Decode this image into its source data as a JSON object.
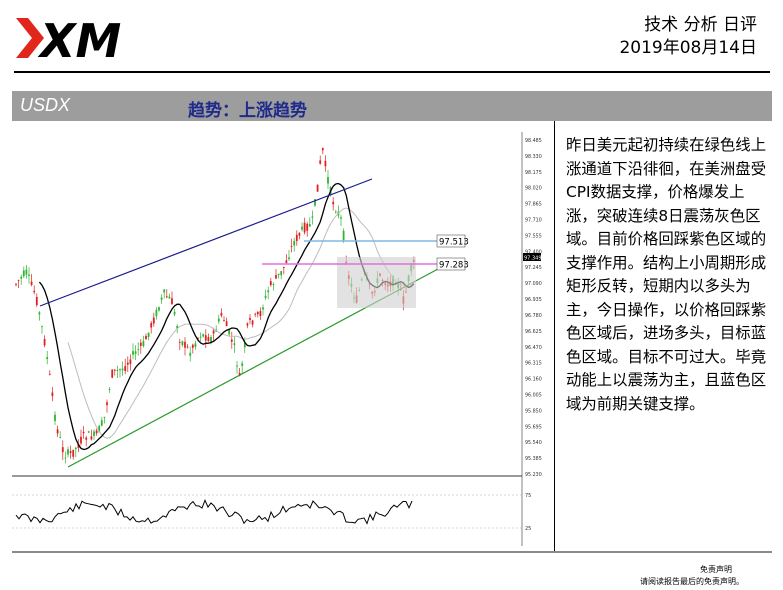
{
  "header": {
    "logo_text": "XM",
    "title": "技术 分析 日评",
    "date": "2019年08月14日"
  },
  "banner": {
    "symbol": "USDX",
    "trend": "趋势：上涨趋势"
  },
  "chart": {
    "level_blue": "97.513",
    "level_purple": "97.283",
    "price_axis": [
      "98.485",
      "98.330",
      "98.175",
      "98.020",
      "97.865",
      "97.710",
      "97.555",
      "97.400",
      "97.245",
      "97.090",
      "96.935",
      "96.780",
      "96.625",
      "96.470",
      "96.315",
      "96.160",
      "96.005",
      "95.850",
      "95.695",
      "95.540",
      "95.385",
      "95.230"
    ],
    "current_price": "97.349",
    "osc_axis": [
      "75",
      "25"
    ],
    "colors": {
      "bull": "#2db52d",
      "bear": "#e02020",
      "channel_upper": "#1a1a8c",
      "channel_lower": "#2a9a2a",
      "blue_zone": "#7fb8e8",
      "purple_zone": "#e070e0"
    }
  },
  "commentary": "昨日美元起初持续在绿色线上涨通道下沿徘徊，在美洲盘受CPI数据支撑，价格爆发上涨，突破连续8日震荡灰色区域。目前价格回踩紫色区域的支撑作用。结构上小周期形成矩形反转，短期内以多头为主，今日操作，以价格回踩紫色区域后，进场多头，目标蓝色区域。目标不可过大。毕竟动能上以震荡为主，且蓝色区域为前期关键支撑。",
  "footer": {
    "disclaimer_title": "免责声明",
    "disclaimer_text": "请阅读报告最后的免责声明。"
  }
}
